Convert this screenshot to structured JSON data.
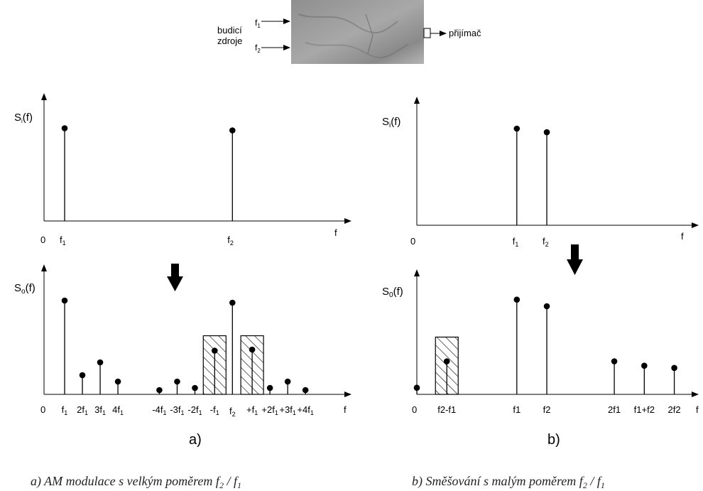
{
  "header": {
    "source_label_line1": "budicí",
    "source_label_line2": "zdroje",
    "input1_main": "f",
    "input1_sub": "1",
    "input2_main": "f",
    "input2_sub": "2",
    "receiver_label": "přijímač",
    "colors": {
      "specimen": "#9a9a9a"
    }
  },
  "panel_a": {
    "top": {
      "ylabel_main": "S",
      "ylabel_sub": "i",
      "ylabel_tail": "(f)",
      "origin_label": "0",
      "xlabel": "f",
      "lines": [
        {
          "label_main": "f",
          "label_sub": "1",
          "pos": 1.0,
          "amp": 0.87
        },
        {
          "label_main": "f",
          "label_sub": "2",
          "pos": 9.5,
          "amp": 0.85
        }
      ]
    },
    "bottom": {
      "ylabel_main": "S",
      "ylabel_sub": "o",
      "ylabel_tail": "(f)",
      "origin_label": "0",
      "xlabel": "f",
      "ticks": [
        {
          "pre": "",
          "main": "f",
          "sub": "1",
          "pos": 1.0
        },
        {
          "pre": "2",
          "main": "f",
          "sub": "1",
          "pos": 1.9
        },
        {
          "pre": "3",
          "main": "f",
          "sub": "1",
          "pos": 2.8
        },
        {
          "pre": "4",
          "main": "f",
          "sub": "1",
          "pos": 3.7
        },
        {
          "pre": "-4",
          "main": "f",
          "sub": "1",
          "pos": 5.8
        },
        {
          "pre": "-3",
          "main": "f",
          "sub": "1",
          "pos": 6.7
        },
        {
          "pre": "-2",
          "main": "f",
          "sub": "1",
          "pos": 7.6
        },
        {
          "pre": "-",
          "main": "f",
          "sub": "1",
          "pos": 8.6
        },
        {
          "pre": "",
          "main": "f",
          "sub": "2",
          "pos": 9.5
        },
        {
          "pre": "+",
          "main": "f",
          "sub": "1",
          "pos": 10.5
        },
        {
          "pre": "+2",
          "main": "f",
          "sub": "1",
          "pos": 11.4
        },
        {
          "pre": "+3",
          "main": "f",
          "sub": "1",
          "pos": 12.3
        },
        {
          "pre": "+4",
          "main": "f",
          "sub": "1",
          "pos": 13.2
        }
      ],
      "lines": [
        {
          "pos": 1.0,
          "amp": 0.88
        },
        {
          "pos": 1.9,
          "amp": 0.18
        },
        {
          "pos": 2.8,
          "amp": 0.3
        },
        {
          "pos": 3.7,
          "amp": 0.12
        },
        {
          "pos": 5.8,
          "amp": 0.04
        },
        {
          "pos": 6.7,
          "amp": 0.12
        },
        {
          "pos": 7.6,
          "amp": 0.06
        },
        {
          "pos": 8.6,
          "amp": 0.41
        },
        {
          "pos": 9.5,
          "amp": 0.86
        },
        {
          "pos": 10.5,
          "amp": 0.42
        },
        {
          "pos": 11.4,
          "amp": 0.06
        },
        {
          "pos": 12.3,
          "amp": 0.12
        },
        {
          "pos": 13.2,
          "amp": 0.04
        }
      ],
      "boxes": [
        {
          "center": 8.6,
          "height": 0.55
        },
        {
          "center": 10.5,
          "height": 0.55
        }
      ]
    },
    "panel_label": "a)"
  },
  "panel_b": {
    "top": {
      "ylabel_main": "S",
      "ylabel_sub": "i",
      "ylabel_tail": "(f)",
      "origin_label": "0",
      "xlabel": "f",
      "lines": [
        {
          "label_main": "f",
          "label_sub": "1",
          "pos": 4.0,
          "amp": 0.8
        },
        {
          "label_main": "f",
          "label_sub": "2",
          "pos": 5.2,
          "amp": 0.77
        }
      ]
    },
    "bottom": {
      "ylabel_main": "S",
      "ylabel_sub": "0",
      "ylabel_tail": "(f)",
      "origin_label": "0",
      "xlabel": "f",
      "ticks": [
        {
          "text": "f2-f1",
          "pos": 1.2
        },
        {
          "text": "f1",
          "pos": 4.0
        },
        {
          "text": "f2",
          "pos": 5.2
        },
        {
          "text": "2f1",
          "pos": 7.9
        },
        {
          "text": "f1+f2",
          "pos": 9.1
        },
        {
          "text": "2f2",
          "pos": 10.3
        }
      ],
      "lines": [
        {
          "pos": 0.0,
          "amp": 0.06
        },
        {
          "pos": 1.2,
          "amp": 0.3
        },
        {
          "pos": 4.0,
          "amp": 0.86
        },
        {
          "pos": 5.2,
          "amp": 0.8
        },
        {
          "pos": 7.9,
          "amp": 0.3
        },
        {
          "pos": 9.1,
          "amp": 0.26
        },
        {
          "pos": 10.3,
          "amp": 0.24
        }
      ],
      "boxes": [
        {
          "center": 1.2,
          "height": 0.52
        }
      ]
    },
    "panel_label": "b)"
  },
  "captions": {
    "a_text": "a) AM modulace s velkým poměrem ",
    "a_f2": "f",
    "a_f2_sub": "2",
    "a_mid": " / ",
    "a_f1": "f",
    "a_f1_sub": "1",
    "b_text": "b) Směšování s malým poměrem ",
    "b_f2": "f",
    "b_f2_sub": "2",
    "b_mid": " / ",
    "b_f1": "f",
    "b_f1_sub": "1"
  }
}
